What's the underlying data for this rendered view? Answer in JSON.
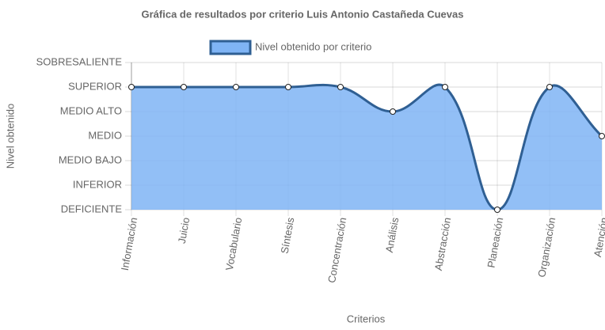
{
  "chart_data": {
    "type": "line",
    "title": "Gráfica de resultados por criterio Luis Antonio Castañeda Cuevas",
    "x_label": "Criterios",
    "y_label": "Nivel obtenido",
    "categories": [
      "Información",
      "Juicio",
      "Vocabulario",
      "Síntesis",
      "Concentración",
      "Análisis",
      "Abstracción",
      "Planeación",
      "Organización",
      "Atención"
    ],
    "series": [
      {
        "name": "Nivel obtenido por criterio",
        "color": "#2f5f93",
        "fill": "#7fb4f5",
        "values": [
          6,
          6,
          6,
          6,
          6,
          5,
          6,
          1,
          6,
          4
        ]
      }
    ],
    "ylim": [
      1,
      7
    ],
    "yticks": [
      {
        "value": 1,
        "label": "DEFICIENTE"
      },
      {
        "value": 2,
        "label": "INFERIOR"
      },
      {
        "value": 3,
        "label": "MEDIO BAJO"
      },
      {
        "value": 4,
        "label": "MEDIO"
      },
      {
        "value": 5,
        "label": "MEDIO ALTO"
      },
      {
        "value": 6,
        "label": "SUPERIOR"
      },
      {
        "value": 7,
        "label": "SOBRESALIENTE"
      }
    ],
    "grid": true,
    "legend": "top"
  }
}
